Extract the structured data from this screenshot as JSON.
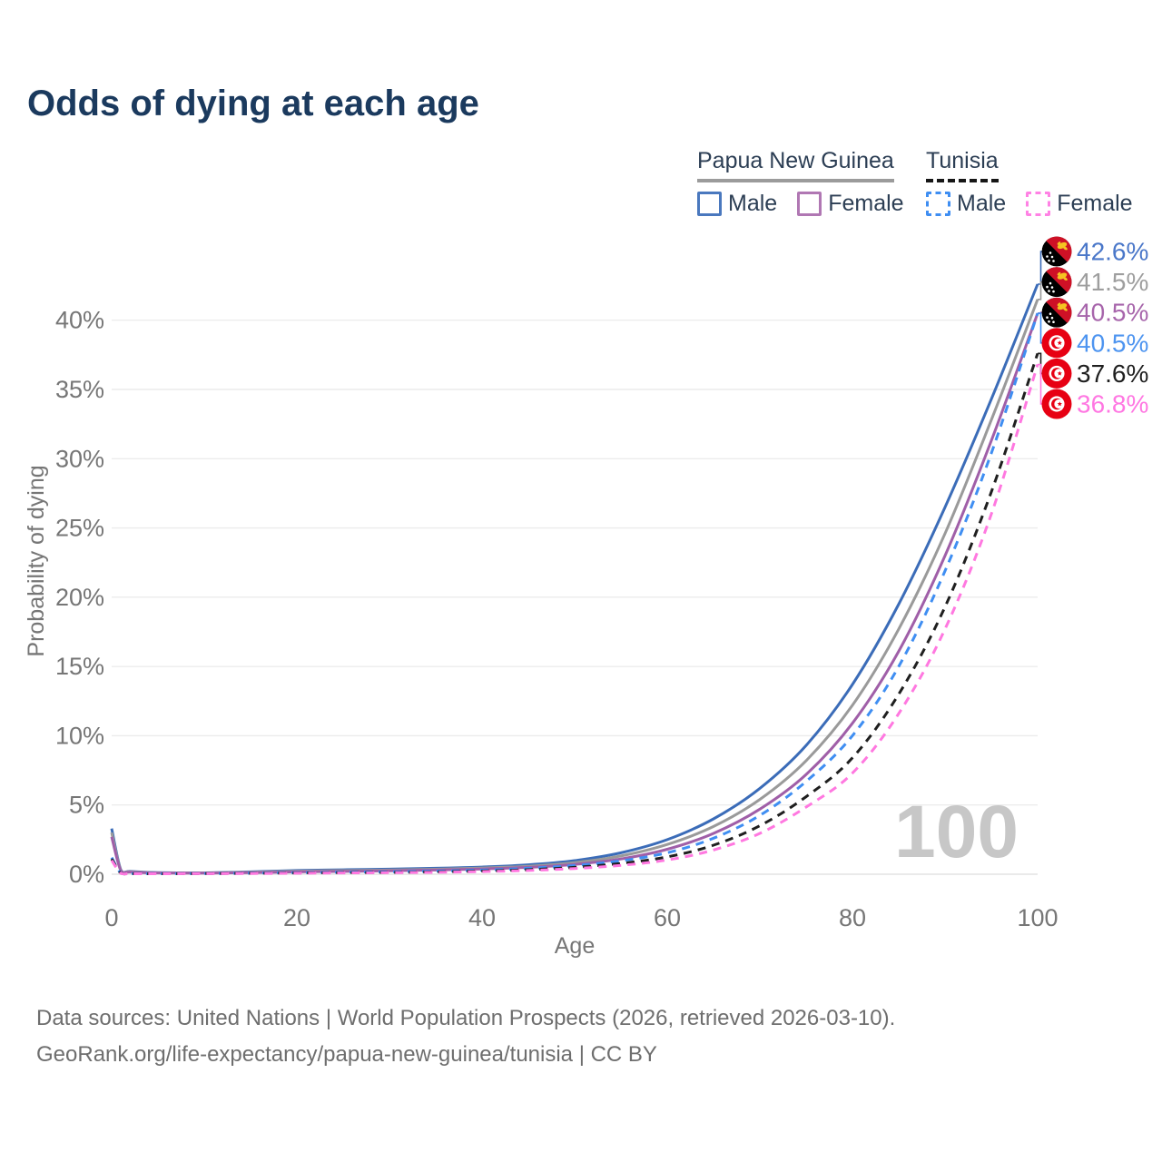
{
  "title": "Odds of dying at each age",
  "legend": {
    "groups": [
      {
        "name": "Papua New Guinea",
        "line_style": "solid",
        "underline_color": "#9b9b9b",
        "items": [
          {
            "label": "Male",
            "color": "#4a78be"
          },
          {
            "label": "Female",
            "color": "#b077b3"
          }
        ]
      },
      {
        "name": "Tunisia",
        "line_style": "dashed",
        "underline_color": "#161616",
        "items": [
          {
            "label": "Male",
            "color": "#3f8ef2"
          },
          {
            "label": "Female",
            "color": "#ff82e4"
          }
        ]
      }
    ]
  },
  "watermark": "100",
  "footer": {
    "line1": "Data sources: United Nations | World Population Prospects (2026, retrieved 2026-03-10).",
    "line2": "GeoRank.org/life-expectancy/papua-new-guinea/tunisia | CC BY"
  },
  "chart_data": {
    "type": "line",
    "title": "Odds of dying at each age",
    "xlabel": "Age",
    "ylabel": "Probability of dying",
    "xlim": [
      0,
      100
    ],
    "ylim": [
      0,
      45
    ],
    "x_ticks": [
      0,
      20,
      40,
      60,
      80,
      100
    ],
    "y_ticks_percent": [
      0,
      5,
      10,
      15,
      20,
      25,
      30,
      35,
      40
    ],
    "grid": "horizontal",
    "legend_position": "top-right",
    "ages": [
      0,
      1,
      2,
      5,
      10,
      15,
      20,
      25,
      30,
      35,
      40,
      45,
      50,
      55,
      60,
      65,
      70,
      75,
      80,
      85,
      90,
      95,
      100
    ],
    "series": [
      {
        "name": "Papua New Guinea Male",
        "country": "Papua New Guinea",
        "sex": "Male",
        "flag": "png",
        "dashed": false,
        "color": "#3b6cb8",
        "end_label": "42.6%",
        "end_label_color": "#4a77c9",
        "values": [
          3.3,
          0.3,
          0.2,
          0.12,
          0.1,
          0.17,
          0.27,
          0.32,
          0.37,
          0.43,
          0.52,
          0.68,
          0.98,
          1.55,
          2.5,
          4.0,
          6.2,
          9.3,
          13.7,
          19.5,
          26.5,
          34.3,
          42.6
        ]
      },
      {
        "name": "Papua New Guinea Both sexes",
        "country": "Papua New Guinea",
        "sex": "Both",
        "flag": "png",
        "dashed": false,
        "color": "#9a9a9a",
        "end_label": "41.5%",
        "end_label_color": "#9e9e9e",
        "values": [
          3.0,
          0.27,
          0.18,
          0.1,
          0.09,
          0.14,
          0.22,
          0.26,
          0.3,
          0.36,
          0.45,
          0.58,
          0.84,
          1.32,
          2.15,
          3.45,
          5.4,
          8.2,
          12.2,
          17.7,
          24.6,
          32.8,
          41.5
        ]
      },
      {
        "name": "Papua New Guinea Female",
        "country": "Papua New Guinea",
        "sex": "Female",
        "flag": "png",
        "dashed": false,
        "color": "#a05fa8",
        "end_label": "40.5%",
        "end_label_color": "#a765ab",
        "values": [
          2.7,
          0.24,
          0.16,
          0.09,
          0.08,
          0.11,
          0.17,
          0.2,
          0.24,
          0.3,
          0.38,
          0.5,
          0.71,
          1.1,
          1.8,
          2.95,
          4.7,
          7.2,
          10.9,
          16.1,
          23.0,
          31.3,
          40.5
        ]
      },
      {
        "name": "Tunisia Male",
        "country": "Tunisia",
        "sex": "Male",
        "flag": "tun",
        "dashed": true,
        "color": "#3f8ef2",
        "end_label": "40.5%",
        "end_label_color": "#4d94f0",
        "values": [
          1.2,
          0.08,
          0.05,
          0.04,
          0.05,
          0.08,
          0.12,
          0.15,
          0.18,
          0.23,
          0.3,
          0.43,
          0.63,
          0.97,
          1.55,
          2.6,
          4.25,
          6.7,
          10.0,
          15.0,
          21.9,
          30.4,
          40.5
        ]
      },
      {
        "name": "Tunisia Both sexes",
        "country": "Tunisia",
        "sex": "Both",
        "flag": "tun",
        "dashed": true,
        "color": "#1f1f1f",
        "end_label": "37.6%",
        "end_label_color": "#1f1f1f",
        "values": [
          1.1,
          0.07,
          0.045,
          0.035,
          0.045,
          0.065,
          0.09,
          0.11,
          0.13,
          0.17,
          0.23,
          0.33,
          0.5,
          0.78,
          1.25,
          2.1,
          3.5,
          5.6,
          8.4,
          13.0,
          19.3,
          27.6,
          37.6
        ]
      },
      {
        "name": "Tunisia Female",
        "country": "Tunisia",
        "sex": "Female",
        "flag": "tun",
        "dashed": true,
        "color": "#ff78e0",
        "end_label": "36.8%",
        "end_label_color": "#ff77e2",
        "values": [
          1.0,
          0.06,
          0.04,
          0.03,
          0.04,
          0.05,
          0.07,
          0.09,
          0.11,
          0.14,
          0.19,
          0.27,
          0.41,
          0.64,
          1.03,
          1.75,
          2.95,
          4.85,
          7.3,
          11.6,
          17.7,
          26.0,
          36.8
        ]
      }
    ]
  }
}
